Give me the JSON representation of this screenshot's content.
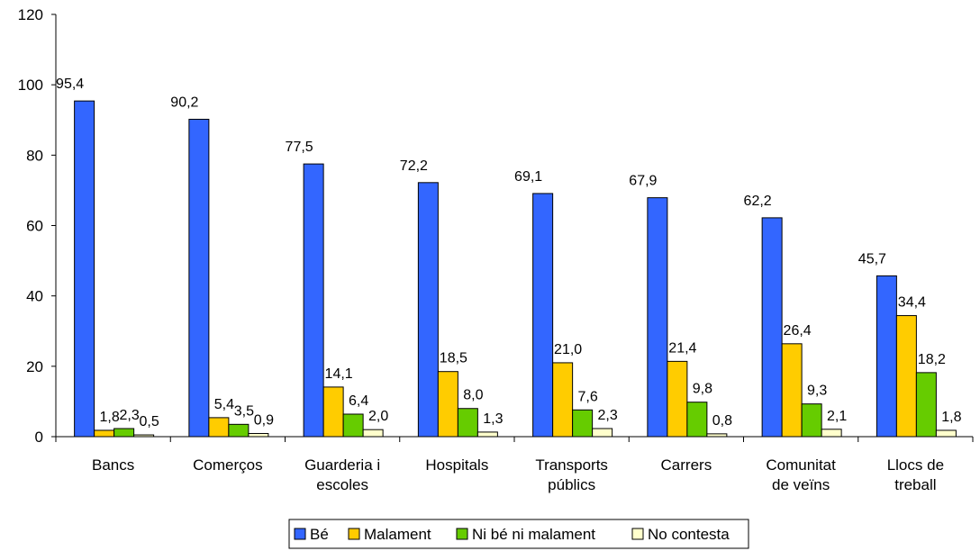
{
  "chart_data": {
    "type": "bar",
    "categories": [
      [
        "Bancs"
      ],
      [
        "Comerços"
      ],
      [
        "Guarderia i",
        "escoles"
      ],
      [
        "Hospitals"
      ],
      [
        "Transports",
        "públics"
      ],
      [
        "Carrers"
      ],
      [
        "Comunitat",
        "de veïns"
      ],
      [
        "Llocs de",
        "treball"
      ]
    ],
    "series": [
      {
        "name": "Bé",
        "color": "#3366FF",
        "values": [
          95.4,
          90.2,
          77.5,
          72.2,
          69.1,
          67.9,
          62.2,
          45.7
        ],
        "labels": [
          "95,4",
          "90,2",
          "77,5",
          "72,2",
          "69,1",
          "67,9",
          "62,2",
          "45,7"
        ]
      },
      {
        "name": "Malament",
        "color": "#FFCC00",
        "values": [
          1.8,
          5.4,
          14.1,
          18.5,
          21.0,
          21.4,
          26.4,
          34.4
        ],
        "labels": [
          "1,8",
          "5,4",
          "14,1",
          "18,5",
          "21,0",
          "21,4",
          "26,4",
          "34,4"
        ]
      },
      {
        "name": "Ni bé ni malament",
        "color": "#66CC00",
        "values": [
          2.3,
          3.5,
          6.4,
          8.0,
          7.6,
          9.8,
          9.3,
          18.2
        ],
        "labels": [
          "2,3",
          "3,5",
          "6,4",
          "8,0",
          "7,6",
          "9,8",
          "9,3",
          "18,2"
        ]
      },
      {
        "name": "No contesta",
        "color": "#FFFFCC",
        "values": [
          0.5,
          0.9,
          2.0,
          1.3,
          2.3,
          0.8,
          2.1,
          1.8
        ],
        "labels": [
          "0,5",
          "0,9",
          "2,0",
          "1,3",
          "2,3",
          "0,8",
          "2,1",
          "1,8"
        ]
      }
    ],
    "ylim": [
      0,
      120
    ],
    "yticks": [
      0,
      20,
      40,
      60,
      80,
      100,
      120
    ],
    "grid": false,
    "legend_position": "bottom"
  }
}
